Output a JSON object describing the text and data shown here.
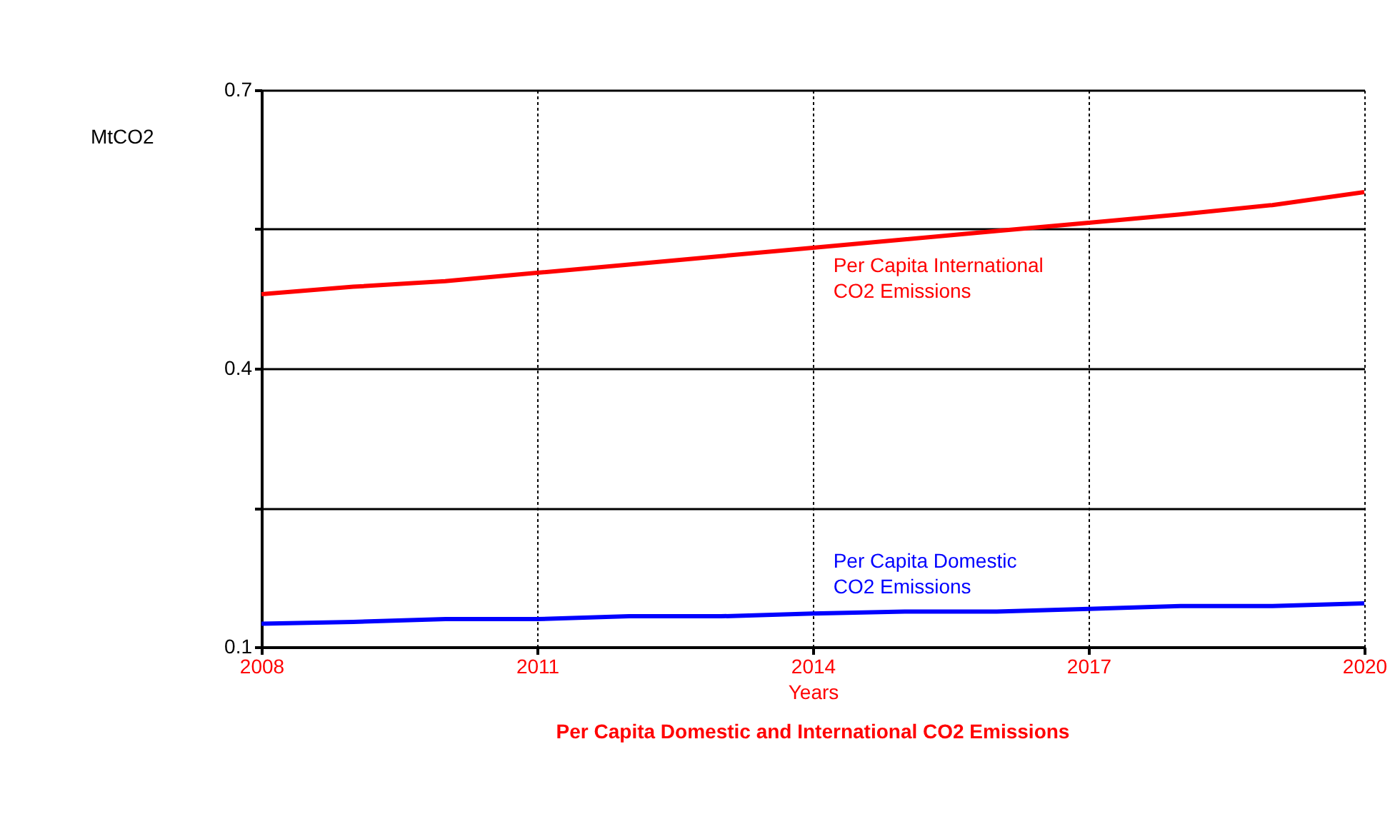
{
  "chart_data": {
    "type": "line",
    "title": "Per Capita Domestic and International CO2 Emissions",
    "xlabel": "Years",
    "ylabel": "MtCO2",
    "x": [
      2008,
      2009,
      2010,
      2011,
      2012,
      2013,
      2014,
      2015,
      2016,
      2017,
      2018,
      2019,
      2020
    ],
    "series": [
      {
        "name": "Per Capita International CO2 Emissions",
        "color": "#ff0000",
        "values": [
          0.48,
          0.488,
          0.494,
          0.503,
          0.512,
          0.521,
          0.53,
          0.539,
          0.548,
          0.557,
          0.566,
          0.576,
          0.59
        ]
      },
      {
        "name": "Per Capita Domestic CO2 Emissions",
        "color": "#0000ff",
        "values": [
          0.125,
          0.127,
          0.13,
          0.13,
          0.133,
          0.133,
          0.136,
          0.138,
          0.138,
          0.141,
          0.144,
          0.144,
          0.147
        ]
      }
    ],
    "xlim": [
      2008,
      2020
    ],
    "xticks": [
      2008,
      2011,
      2014,
      2017,
      2020
    ],
    "ylim": [
      0.1,
      0.7
    ],
    "yticks": [
      0.1,
      {
        "value": 0.25,
        "label": null
      },
      0.4,
      {
        "value": 0.55,
        "label": null
      },
      0.7
    ],
    "grid": true,
    "marker": "none",
    "line_style": "solid"
  }
}
